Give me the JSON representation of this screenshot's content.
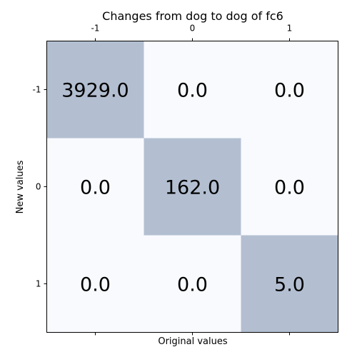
{
  "chart_data": {
    "type": "heatmap",
    "title": "Changes from dog to dog of fc6",
    "xlabel": "Original values",
    "ylabel": "New values",
    "x_ticks": [
      "-1",
      "0",
      "1"
    ],
    "y_ticks": [
      "-1",
      "0",
      "1"
    ],
    "x_tick_position": "top",
    "matrix": [
      [
        3929.0,
        0.0,
        0.0
      ],
      [
        0.0,
        162.0,
        0.0
      ],
      [
        0.0,
        0.0,
        5.0
      ]
    ],
    "cell_text": [
      [
        "3929.0",
        "0.0",
        "0.0"
      ],
      [
        "0.0",
        "162.0",
        "0.0"
      ],
      [
        "0.0",
        "0.0",
        "5.0"
      ]
    ],
    "colors": {
      "highlight": "#b3bfd1",
      "background": "#f8fafe",
      "frame": "#000000"
    }
  }
}
